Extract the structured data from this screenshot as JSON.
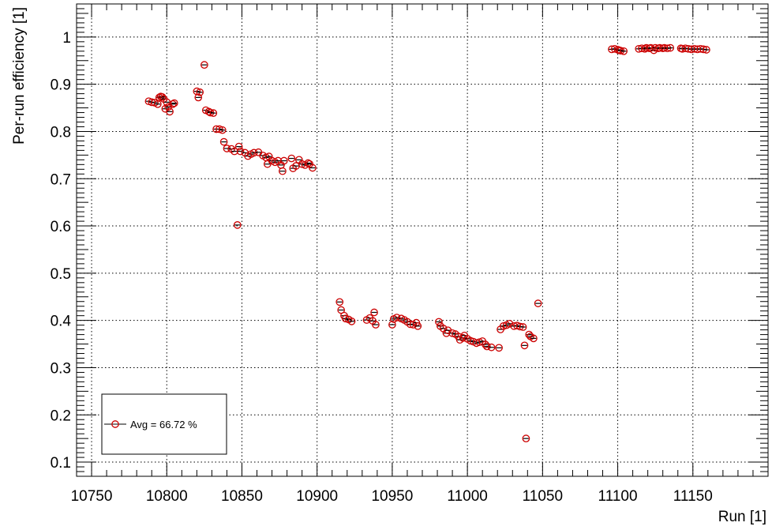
{
  "chart_data": {
    "type": "scatter",
    "title": "",
    "xlabel": "Run [1]",
    "ylabel": "Per-run efficiency [1]",
    "xlim": [
      10740,
      11200
    ],
    "ylim": [
      0.07,
      1.07
    ],
    "grid": true,
    "x_ticks": [
      10750,
      10800,
      10850,
      10900,
      10950,
      11000,
      11050,
      11100,
      11150
    ],
    "y_ticks": [
      0.1,
      0.2,
      0.3,
      0.4,
      0.5,
      0.6,
      0.7,
      0.8,
      0.9,
      1
    ],
    "colors": {
      "marker": "#cc0000",
      "error_bar": "#000000",
      "grid": "#000000"
    },
    "legend": {
      "placement": "bottom-left",
      "label": "Avg = 66.72 %"
    },
    "series": [
      {
        "name": "Avg = 66.72 %",
        "points": [
          [
            10788,
            0.864
          ],
          [
            10790,
            0.862
          ],
          [
            10792,
            0.861
          ],
          [
            10794,
            0.858
          ],
          [
            10795,
            0.872
          ],
          [
            10796,
            0.874
          ],
          [
            10797,
            0.873
          ],
          [
            10798,
            0.869
          ],
          [
            10799,
            0.848
          ],
          [
            10800,
            0.862
          ],
          [
            10801,
            0.852
          ],
          [
            10802,
            0.842
          ],
          [
            10804,
            0.858
          ],
          [
            10805,
            0.86
          ],
          [
            10820,
            0.885
          ],
          [
            10821,
            0.872
          ],
          [
            10822,
            0.883
          ],
          [
            10825,
            0.941
          ],
          [
            10826,
            0.845
          ],
          [
            10828,
            0.842
          ],
          [
            10829,
            0.84
          ],
          [
            10831,
            0.839
          ],
          [
            10833,
            0.805
          ],
          [
            10835,
            0.805
          ],
          [
            10837,
            0.803
          ],
          [
            10838,
            0.778
          ],
          [
            10840,
            0.764
          ],
          [
            10843,
            0.763
          ],
          [
            10845,
            0.758
          ],
          [
            10847,
            0.602
          ],
          [
            10848,
            0.768
          ],
          [
            10849,
            0.758
          ],
          [
            10852,
            0.755
          ],
          [
            10854,
            0.748
          ],
          [
            10856,
            0.752
          ],
          [
            10858,
            0.755
          ],
          [
            10861,
            0.756
          ],
          [
            10864,
            0.749
          ],
          [
            10866,
            0.745
          ],
          [
            10867,
            0.731
          ],
          [
            10868,
            0.747
          ],
          [
            10870,
            0.738
          ],
          [
            10872,
            0.735
          ],
          [
            10874,
            0.738
          ],
          [
            10876,
            0.729
          ],
          [
            10877,
            0.716
          ],
          [
            10878,
            0.738
          ],
          [
            10883,
            0.743
          ],
          [
            10884,
            0.722
          ],
          [
            10886,
            0.727
          ],
          [
            10888,
            0.74
          ],
          [
            10890,
            0.731
          ],
          [
            10892,
            0.729
          ],
          [
            10894,
            0.733
          ],
          [
            10895,
            0.731
          ],
          [
            10897,
            0.723
          ],
          [
            10915,
            0.439
          ],
          [
            10916,
            0.422
          ],
          [
            10918,
            0.41
          ],
          [
            10919,
            0.404
          ],
          [
            10921,
            0.402
          ],
          [
            10923,
            0.398
          ],
          [
            10933,
            0.401
          ],
          [
            10935,
            0.405
          ],
          [
            10937,
            0.399
          ],
          [
            10938,
            0.417
          ],
          [
            10939,
            0.391
          ],
          [
            10950,
            0.391
          ],
          [
            10951,
            0.403
          ],
          [
            10953,
            0.406
          ],
          [
            10956,
            0.404
          ],
          [
            10958,
            0.401
          ],
          [
            10960,
            0.397
          ],
          [
            10962,
            0.392
          ],
          [
            10964,
            0.391
          ],
          [
            10966,
            0.395
          ],
          [
            10967,
            0.388
          ],
          [
            10981,
            0.397
          ],
          [
            10982,
            0.388
          ],
          [
            10984,
            0.383
          ],
          [
            10986,
            0.373
          ],
          [
            10987,
            0.379
          ],
          [
            10990,
            0.373
          ],
          [
            10992,
            0.371
          ],
          [
            10994,
            0.366
          ],
          [
            10995,
            0.359
          ],
          [
            10997,
            0.363
          ],
          [
            10998,
            0.368
          ],
          [
            11000,
            0.361
          ],
          [
            11002,
            0.357
          ],
          [
            11004,
            0.355
          ],
          [
            11006,
            0.352
          ],
          [
            11008,
            0.354
          ],
          [
            11010,
            0.356
          ],
          [
            11012,
            0.349
          ],
          [
            11013,
            0.345
          ],
          [
            11016,
            0.343
          ],
          [
            11021,
            0.342
          ],
          [
            11022,
            0.381
          ],
          [
            11024,
            0.388
          ],
          [
            11026,
            0.39
          ],
          [
            11028,
            0.393
          ],
          [
            11031,
            0.388
          ],
          [
            11033,
            0.389
          ],
          [
            11035,
            0.387
          ],
          [
            11037,
            0.386
          ],
          [
            11038,
            0.347
          ],
          [
            11039,
            0.15
          ],
          [
            11041,
            0.37
          ],
          [
            11042,
            0.366
          ],
          [
            11044,
            0.362
          ],
          [
            11047,
            0.436
          ],
          [
            11096,
            0.974
          ],
          [
            11098,
            0.975
          ],
          [
            11100,
            0.973
          ],
          [
            11101,
            0.972
          ],
          [
            11102,
            0.971
          ],
          [
            11104,
            0.97
          ],
          [
            11114,
            0.975
          ],
          [
            11116,
            0.976
          ],
          [
            11118,
            0.975
          ],
          [
            11119,
            0.977
          ],
          [
            11121,
            0.976
          ],
          [
            11122,
            0.977
          ],
          [
            11124,
            0.972
          ],
          [
            11125,
            0.977
          ],
          [
            11127,
            0.976
          ],
          [
            11128,
            0.977
          ],
          [
            11130,
            0.976
          ],
          [
            11131,
            0.977
          ],
          [
            11133,
            0.976
          ],
          [
            11135,
            0.977
          ],
          [
            11142,
            0.976
          ],
          [
            11143,
            0.975
          ],
          [
            11145,
            0.976
          ],
          [
            11147,
            0.975
          ],
          [
            11149,
            0.974
          ],
          [
            11151,
            0.975
          ],
          [
            11153,
            0.974
          ],
          [
            11155,
            0.975
          ],
          [
            11157,
            0.974
          ],
          [
            11159,
            0.973
          ]
        ]
      }
    ]
  }
}
